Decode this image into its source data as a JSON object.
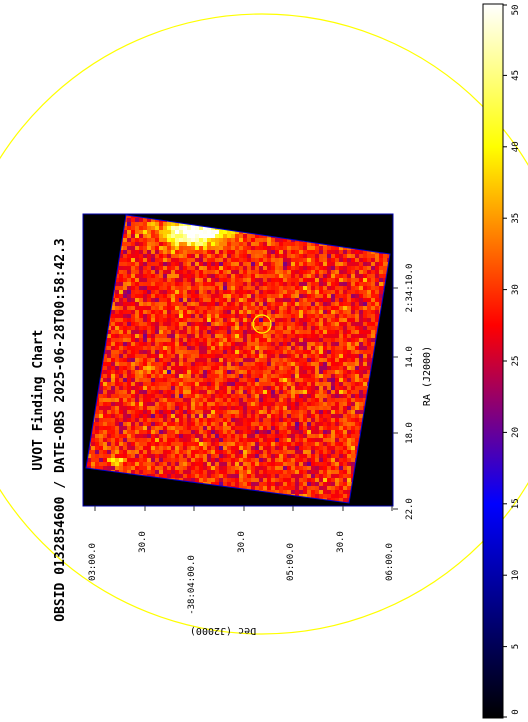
{
  "chart_data": {
    "type": "heatmap",
    "title": "UVOT Finding Chart",
    "subtitle": "OBSID 0132854600 / DATE-OBS 2025-06-28T00:58:42.3",
    "xlabel": "RA (J2000)",
    "ylabel": "Dec (J2000)",
    "ra_tick_labels": [
      "22.0",
      "18.0",
      "14.0",
      "2:34:10.0"
    ],
    "dec_tick_labels": [
      "03:00.0",
      "30.0",
      "-38:04:00.0",
      "30.0",
      "05:00.0",
      "30.0",
      "06:00.0"
    ],
    "colorbar": {
      "min": 0,
      "max": 50,
      "tick_labels": [
        "0",
        "5",
        "10",
        "15",
        "20",
        "25",
        "30",
        "35",
        "40",
        "45",
        "50"
      ],
      "colors": [
        "#000000",
        "#0000ff",
        "#ff0000",
        "#ffff00",
        "#ffffff"
      ]
    },
    "image_mean_value": 29,
    "overlays": [
      "small-circle",
      "large-circle"
    ],
    "overlay_color": "#ffff00"
  }
}
